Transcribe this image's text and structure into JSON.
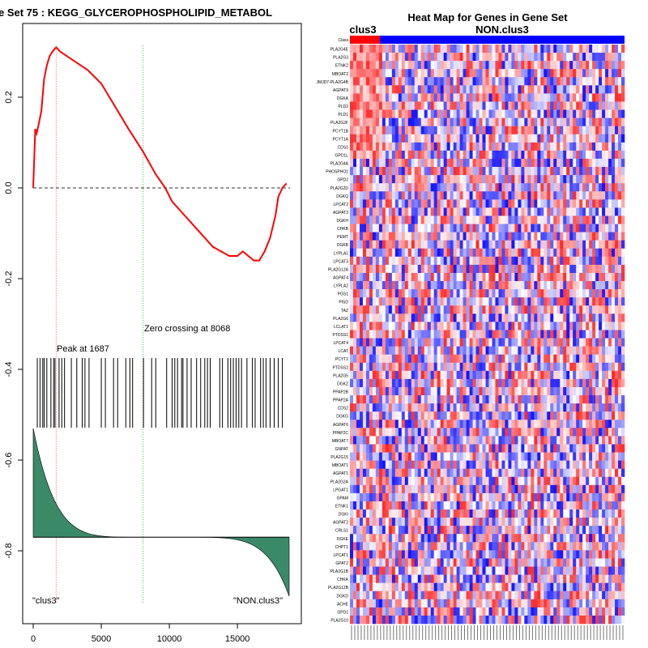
{
  "chart_data": [
    {
      "type": "line",
      "title": "e Set  75 : KEGG_GLYCEROPHOSPHOLIPID_METABOL",
      "xlabel": "",
      "ylabel": "",
      "xlim": [
        0,
        18800
      ],
      "ylim": [
        -0.9,
        0.32
      ],
      "x_ticks": [
        0,
        5000,
        10000,
        15000
      ],
      "y_ticks": [
        0.2,
        0.0,
        -0.2,
        -0.4,
        -0.6,
        -0.8
      ],
      "y_tick_labels": [
        "0.2",
        "0.0",
        "-0.2",
        "-0.4",
        "-0.6",
        "-0.8"
      ],
      "x_tick_labels": [
        "0",
        "5000",
        "10000",
        "15000"
      ],
      "series": [
        {
          "color": "#ff0000",
          "x": [
            0,
            150,
            250,
            400,
            600,
            800,
            1000,
            1200,
            1400,
            1687,
            2000,
            2500,
            3000,
            3500,
            4000,
            5000,
            6000,
            7000,
            8068,
            9000,
            9700,
            10200,
            10800,
            11400,
            12000,
            12600,
            13200,
            13800,
            14400,
            15000,
            15400,
            15800,
            16200,
            16600,
            17000,
            17400,
            17800,
            18000,
            18300,
            18600
          ],
          "values": [
            0.0,
            0.13,
            0.12,
            0.14,
            0.17,
            0.24,
            0.27,
            0.29,
            0.3,
            0.31,
            0.3,
            0.29,
            0.28,
            0.27,
            0.26,
            0.23,
            0.18,
            0.13,
            0.08,
            0.03,
            -0.0,
            -0.03,
            -0.05,
            -0.07,
            -0.09,
            -0.11,
            -0.13,
            -0.14,
            -0.15,
            -0.15,
            -0.14,
            -0.15,
            -0.16,
            -0.16,
            -0.14,
            -0.11,
            -0.06,
            -0.02,
            0.0,
            0.01
          ]
        }
      ],
      "hits": [
        300,
        500,
        700,
        800,
        1000,
        1300,
        1500,
        1600,
        1900,
        2100,
        2300,
        2800,
        3200,
        3600,
        3800,
        4100,
        5000,
        5300,
        5900,
        6200,
        6800,
        7100,
        7300,
        8100,
        8700,
        9000,
        9800,
        10200,
        10400,
        10600,
        10900,
        11000,
        11300,
        11600,
        12000,
        12300,
        12600,
        12800,
        13000,
        13700,
        13900,
        14300,
        14500,
        14700,
        14900,
        15100,
        15300,
        15700,
        16100,
        16300,
        16700,
        16900,
        17100,
        17400,
        17700,
        18000,
        18300
      ],
      "annotations": {
        "peak": "Peak at 1687",
        "zero": "Zero crossing at 8068",
        "left_label": "\"clus3\"",
        "right_label": "\"NON.clus3\""
      },
      "peak_x": 1687,
      "zero_x": 8068,
      "ranked_metric": {
        "color": "#3a8a6a",
        "baseline": -0.77,
        "start": -0.53,
        "end": -0.9
      }
    },
    {
      "type": "heatmap",
      "title": "Heat Map for Genes in Gene Set",
      "groups": [
        {
          "name": "clus3",
          "color": "#ff0000"
        },
        {
          "name": "NON.clus3",
          "color": "#0000ff"
        }
      ],
      "class_row_label": "Class",
      "genes": [
        "PLA2G4E",
        "PLA2G3",
        "ETNK2",
        "MBOAT2",
        "JMJD7-PLA2G4B",
        "AGPAT9",
        "DGKA",
        "PLD2",
        "PLD1",
        "PLA2G2F",
        "PCYT1B",
        "PCYT1A",
        "CDS1",
        "GPD1L",
        "PLA2G4A",
        "PHOSPHO1",
        "GPD2",
        "PLA2G2D",
        "DGKQ",
        "LPCAT2",
        "AGPAT3",
        "DGKH",
        "CHKB",
        "PEMT",
        "DGKB",
        "LYPLA1",
        "LPCAT3",
        "PLA2G12A",
        "AGPAT4",
        "LYPLA2",
        "PGS1",
        "PISD",
        "TAZ",
        "PLA2G6",
        "LCLAT1",
        "PTDSS1",
        "LPCAT4",
        "LCAT",
        "PCYT2",
        "PTDSS2",
        "PLA2G5",
        "DGKZ",
        "PPAP2B",
        "PPAP2A",
        "CDS2",
        "DGKG",
        "AGPAT6",
        "PPAP2C",
        "MBOAT7",
        "GNPAT",
        "PLA2G15",
        "MBOAT1",
        "AGPAT1",
        "PLA2G2A",
        "LPGAT1",
        "GPAM",
        "ETNK1",
        "DGKI",
        "AGPAT2",
        "CRLS1",
        "DGKE",
        "CHPT1",
        "LPCAT1",
        "GPAT2",
        "PLA2G1B",
        "CHKA",
        "PLA2G12B",
        "DGKD",
        "ACHE",
        "GPD1",
        "PLA2G10"
      ]
    }
  ]
}
